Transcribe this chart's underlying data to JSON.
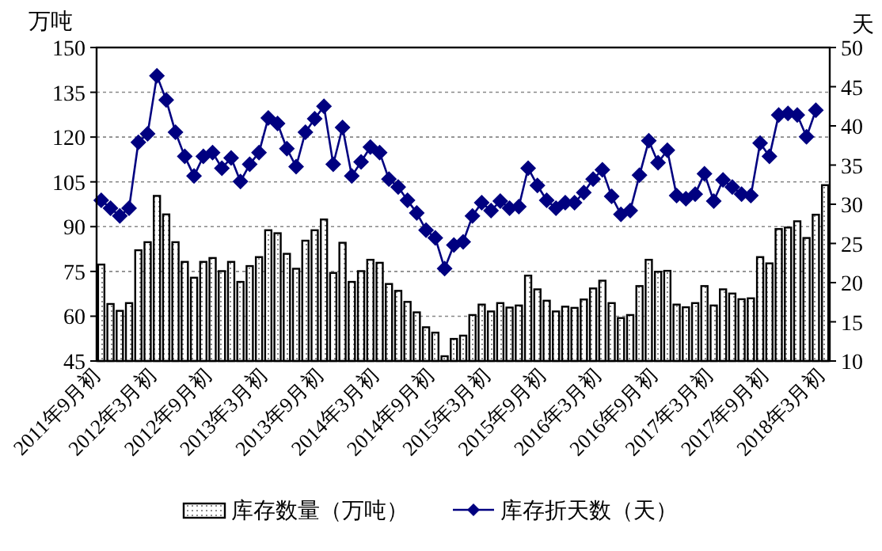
{
  "chart_data": {
    "type": "bar",
    "ylabel": "万吨",
    "y2label": "天",
    "categories": [
      "2011年9月初",
      null,
      null,
      null,
      null,
      null,
      "2012年3月初",
      null,
      null,
      null,
      null,
      null,
      "2012年9月初",
      null,
      null,
      null,
      null,
      null,
      "2013年3月初",
      null,
      null,
      null,
      null,
      null,
      "2013年9月初",
      null,
      null,
      null,
      null,
      null,
      "2014年3月初",
      null,
      null,
      null,
      null,
      null,
      "2014年9月初",
      null,
      null,
      null,
      null,
      null,
      "2015年3月初",
      null,
      null,
      null,
      null,
      null,
      "2015年9月初",
      null,
      null,
      null,
      null,
      null,
      "2016年3月初",
      null,
      null,
      null,
      null,
      null,
      "2016年9月初",
      null,
      null,
      null,
      null,
      null,
      "2017年3月初",
      null,
      null,
      null,
      null,
      null,
      "2017年9月初",
      null,
      null,
      null,
      null,
      null,
      "2018年3月初"
    ],
    "series": [
      {
        "name": "库存数量（万吨）",
        "color": "#000000",
        "values": [
          77.3,
          64.1,
          61.8,
          64.4,
          82.1,
          84.8,
          100.3,
          94.1,
          84.8,
          78.2,
          72.9,
          78.2,
          79.5,
          75.1,
          78.2,
          71.5,
          76.8,
          79.8,
          88.8,
          87.8,
          80.9,
          75.9,
          85.3,
          88.8,
          92.4,
          74.5,
          84.6,
          71.5,
          75.1,
          78.9,
          77.9,
          70.8,
          68.5,
          64.8,
          61.3,
          56.3,
          54.5,
          46.6,
          52.4,
          53.5,
          60.4,
          63.9,
          61.6,
          64.4,
          62.9,
          63.6,
          73.6,
          69.0,
          65.2,
          61.6,
          63.2,
          62.8,
          65.6,
          69.3,
          71.9,
          64.4,
          59.4,
          60.4,
          70.1,
          78.9,
          74.9,
          75.2,
          63.9,
          63.0,
          64.4,
          70.1,
          63.6,
          69.0,
          67.6,
          65.7,
          66.0,
          79.8,
          77.7,
          89.2,
          89.7,
          91.8,
          86.2,
          94.0,
          103.9
        ]
      },
      {
        "name": "库存折天数（天）",
        "type": "line",
        "axis": "y2",
        "color": "#000080",
        "values": [
          30.5,
          29.5,
          28.5,
          29.5,
          37.9,
          39.0,
          46.4,
          43.3,
          39.2,
          36.1,
          33.6,
          36.1,
          36.6,
          34.6,
          35.9,
          32.9,
          35.1,
          36.6,
          41.0,
          40.3,
          37.1,
          34.8,
          39.2,
          40.9,
          42.5,
          35.1,
          39.8,
          33.6,
          35.4,
          37.3,
          36.6,
          33.2,
          32.2,
          30.5,
          28.9,
          26.7,
          25.7,
          21.8,
          24.8,
          25.2,
          28.5,
          30.2,
          29.2,
          30.4,
          29.5,
          29.7,
          34.6,
          32.4,
          30.5,
          29.5,
          30.2,
          30.2,
          31.5,
          33.2,
          34.4,
          31.0,
          28.7,
          29.2,
          33.7,
          38.1,
          35.3,
          36.9,
          31.1,
          30.7,
          31.3,
          33.9,
          30.4,
          33.1,
          32.2,
          31.3,
          31.1,
          37.8,
          36.1,
          41.4,
          41.6,
          41.4,
          38.6,
          42.0,
          null
        ]
      }
    ],
    "ylim": [
      45,
      150
    ],
    "yticks": [
      45,
      60,
      75,
      90,
      105,
      120,
      135,
      150
    ],
    "y2lim": [
      10,
      50
    ],
    "y2ticks": [
      10,
      15,
      20,
      25,
      30,
      35,
      40,
      45,
      50
    ],
    "grid": "y",
    "legend": "bottom",
    "marker": "diamond",
    "line_style": "solid"
  }
}
